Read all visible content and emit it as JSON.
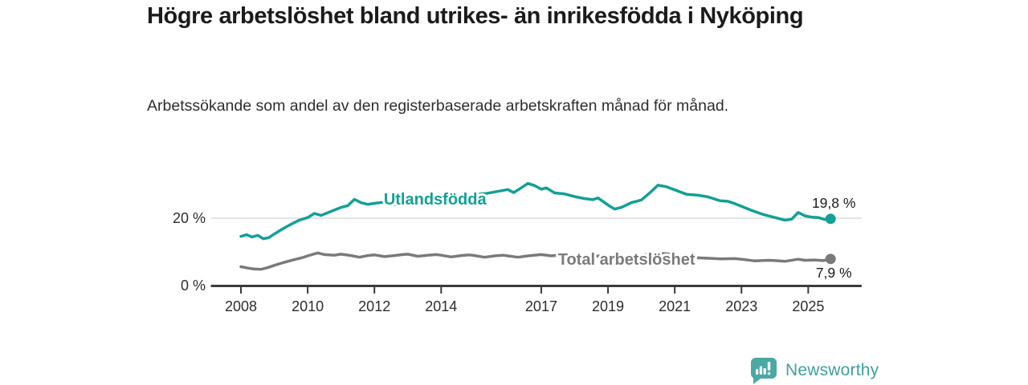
{
  "colors": {
    "accent_teal": "#13a096",
    "series_gray": "#7a7a7a",
    "axis": "#3b3b3b",
    "tick_label": "#2d2d2d",
    "gridline": "#dcdcdc",
    "end_label_text": "#1a1a1a",
    "logo_teal": "#4ba8a4",
    "brand_text": "#3fa09c"
  },
  "footer": {
    "brand": "Newsworthy"
  },
  "chart_data": {
    "type": "line",
    "title": "Högre arbetslöshet bland utrikes- än inrikesfödda i Nyköping",
    "subtitle": "Arbetssökande som andel av den registerbaserade arbetskraften månad för månad.",
    "unit": "%",
    "grid": "single-horizontal-gridline-at-20",
    "legend_position": "inline-series-labels",
    "x_range": [
      2007.1,
      2026.6
    ],
    "y_range": [
      0,
      32
    ],
    "x_ticks": [
      2008,
      2010,
      2012,
      2014,
      2017,
      2019,
      2021,
      2023,
      2025
    ],
    "y_ticks": [
      {
        "value": 0,
        "label": "0 %"
      },
      {
        "value": 20,
        "label": "20 %"
      }
    ],
    "series": [
      {
        "name": "Utlandsfödda",
        "color": "#13a096",
        "end_value": 19.8,
        "end_label": "19,8 %",
        "end_label_side": "above",
        "label_pos": {
          "x": 2012.28,
          "y": 24.0
        },
        "points": [
          [
            2008.0,
            14.6
          ],
          [
            2008.17,
            15.1
          ],
          [
            2008.33,
            14.4
          ],
          [
            2008.5,
            14.9
          ],
          [
            2008.67,
            13.9
          ],
          [
            2008.83,
            14.2
          ],
          [
            2009.0,
            15.3
          ],
          [
            2009.25,
            16.8
          ],
          [
            2009.5,
            18.2
          ],
          [
            2009.75,
            19.4
          ],
          [
            2010.0,
            20.2
          ],
          [
            2010.2,
            21.4
          ],
          [
            2010.4,
            20.8
          ],
          [
            2010.6,
            21.6
          ],
          [
            2010.8,
            22.4
          ],
          [
            2011.0,
            23.2
          ],
          [
            2011.2,
            23.7
          ],
          [
            2011.4,
            25.6
          ],
          [
            2011.6,
            24.6
          ],
          [
            2011.8,
            24.1
          ],
          [
            2012.0,
            24.4
          ],
          [
            2012.25,
            24.7
          ],
          [
            2012.5,
            24.2
          ],
          [
            2012.75,
            23.9
          ],
          [
            2013.0,
            24.3
          ],
          [
            2013.33,
            24.8
          ],
          [
            2013.67,
            25.1
          ],
          [
            2014.0,
            25.9
          ],
          [
            2014.33,
            26.3
          ],
          [
            2014.67,
            26.6
          ],
          [
            2015.0,
            27.0
          ],
          [
            2015.33,
            27.3
          ],
          [
            2015.67,
            27.9
          ],
          [
            2016.0,
            28.5
          ],
          [
            2016.17,
            27.6
          ],
          [
            2016.4,
            29.0
          ],
          [
            2016.6,
            30.3
          ],
          [
            2016.8,
            29.7
          ],
          [
            2017.0,
            28.6
          ],
          [
            2017.15,
            29.0
          ],
          [
            2017.4,
            27.5
          ],
          [
            2017.7,
            27.2
          ],
          [
            2018.0,
            26.4
          ],
          [
            2018.3,
            25.8
          ],
          [
            2018.55,
            25.5
          ],
          [
            2018.7,
            26.0
          ],
          [
            2019.0,
            23.9
          ],
          [
            2019.2,
            22.7
          ],
          [
            2019.4,
            23.2
          ],
          [
            2019.7,
            24.6
          ],
          [
            2020.0,
            25.4
          ],
          [
            2020.25,
            27.5
          ],
          [
            2020.5,
            29.8
          ],
          [
            2020.75,
            29.3
          ],
          [
            2021.0,
            28.4
          ],
          [
            2021.35,
            27.1
          ],
          [
            2021.7,
            26.8
          ],
          [
            2022.0,
            26.3
          ],
          [
            2022.35,
            25.2
          ],
          [
            2022.6,
            25.0
          ],
          [
            2022.8,
            24.3
          ],
          [
            2023.0,
            23.5
          ],
          [
            2023.3,
            22.3
          ],
          [
            2023.65,
            21.1
          ],
          [
            2024.0,
            20.2
          ],
          [
            2024.3,
            19.4
          ],
          [
            2024.5,
            19.7
          ],
          [
            2024.7,
            21.7
          ],
          [
            2024.9,
            20.7
          ],
          [
            2025.1,
            20.3
          ],
          [
            2025.3,
            20.2
          ],
          [
            2025.5,
            19.6
          ],
          [
            2025.67,
            19.8
          ]
        ]
      },
      {
        "name": "Total arbetslöshet",
        "color": "#7a7a7a",
        "end_value": 7.9,
        "end_label": "7,9 %",
        "end_label_side": "below",
        "label_pos": {
          "x": 2017.5,
          "y": 6.2
        },
        "points": [
          [
            2008.0,
            5.6
          ],
          [
            2008.2,
            5.2
          ],
          [
            2008.4,
            4.9
          ],
          [
            2008.6,
            4.8
          ],
          [
            2008.8,
            5.3
          ],
          [
            2009.0,
            6.0
          ],
          [
            2009.3,
            6.9
          ],
          [
            2009.6,
            7.7
          ],
          [
            2009.85,
            8.3
          ],
          [
            2010.0,
            8.8
          ],
          [
            2010.3,
            9.7
          ],
          [
            2010.5,
            9.2
          ],
          [
            2010.8,
            9.0
          ],
          [
            2011.0,
            9.3
          ],
          [
            2011.3,
            8.9
          ],
          [
            2011.55,
            8.4
          ],
          [
            2011.8,
            8.9
          ],
          [
            2012.0,
            9.1
          ],
          [
            2012.3,
            8.6
          ],
          [
            2012.6,
            8.9
          ],
          [
            2012.85,
            9.2
          ],
          [
            2013.0,
            9.3
          ],
          [
            2013.3,
            8.7
          ],
          [
            2013.6,
            9.0
          ],
          [
            2013.85,
            9.2
          ],
          [
            2014.0,
            9.0
          ],
          [
            2014.3,
            8.5
          ],
          [
            2014.6,
            8.9
          ],
          [
            2014.85,
            9.1
          ],
          [
            2015.0,
            8.9
          ],
          [
            2015.3,
            8.4
          ],
          [
            2015.6,
            8.8
          ],
          [
            2015.85,
            9.0
          ],
          [
            2016.0,
            8.8
          ],
          [
            2016.3,
            8.4
          ],
          [
            2016.6,
            8.8
          ],
          [
            2017.0,
            9.2
          ],
          [
            2017.3,
            8.8
          ],
          [
            2017.6,
            9.1
          ],
          [
            2018.0,
            8.9
          ],
          [
            2018.4,
            8.6
          ],
          [
            2018.8,
            8.8
          ],
          [
            2019.0,
            8.7
          ],
          [
            2019.4,
            8.4
          ],
          [
            2019.8,
            8.6
          ],
          [
            2020.0,
            8.9
          ],
          [
            2020.4,
            9.7
          ],
          [
            2020.8,
            9.4
          ],
          [
            2021.0,
            8.9
          ],
          [
            2021.4,
            8.4
          ],
          [
            2021.8,
            8.2
          ],
          [
            2022.0,
            8.1
          ],
          [
            2022.4,
            7.9
          ],
          [
            2022.8,
            8.0
          ],
          [
            2023.0,
            7.8
          ],
          [
            2023.4,
            7.3
          ],
          [
            2023.8,
            7.5
          ],
          [
            2024.0,
            7.4
          ],
          [
            2024.3,
            7.2
          ],
          [
            2024.7,
            7.8
          ],
          [
            2024.9,
            7.5
          ],
          [
            2025.2,
            7.6
          ],
          [
            2025.45,
            7.4
          ],
          [
            2025.67,
            7.9
          ]
        ]
      }
    ]
  }
}
